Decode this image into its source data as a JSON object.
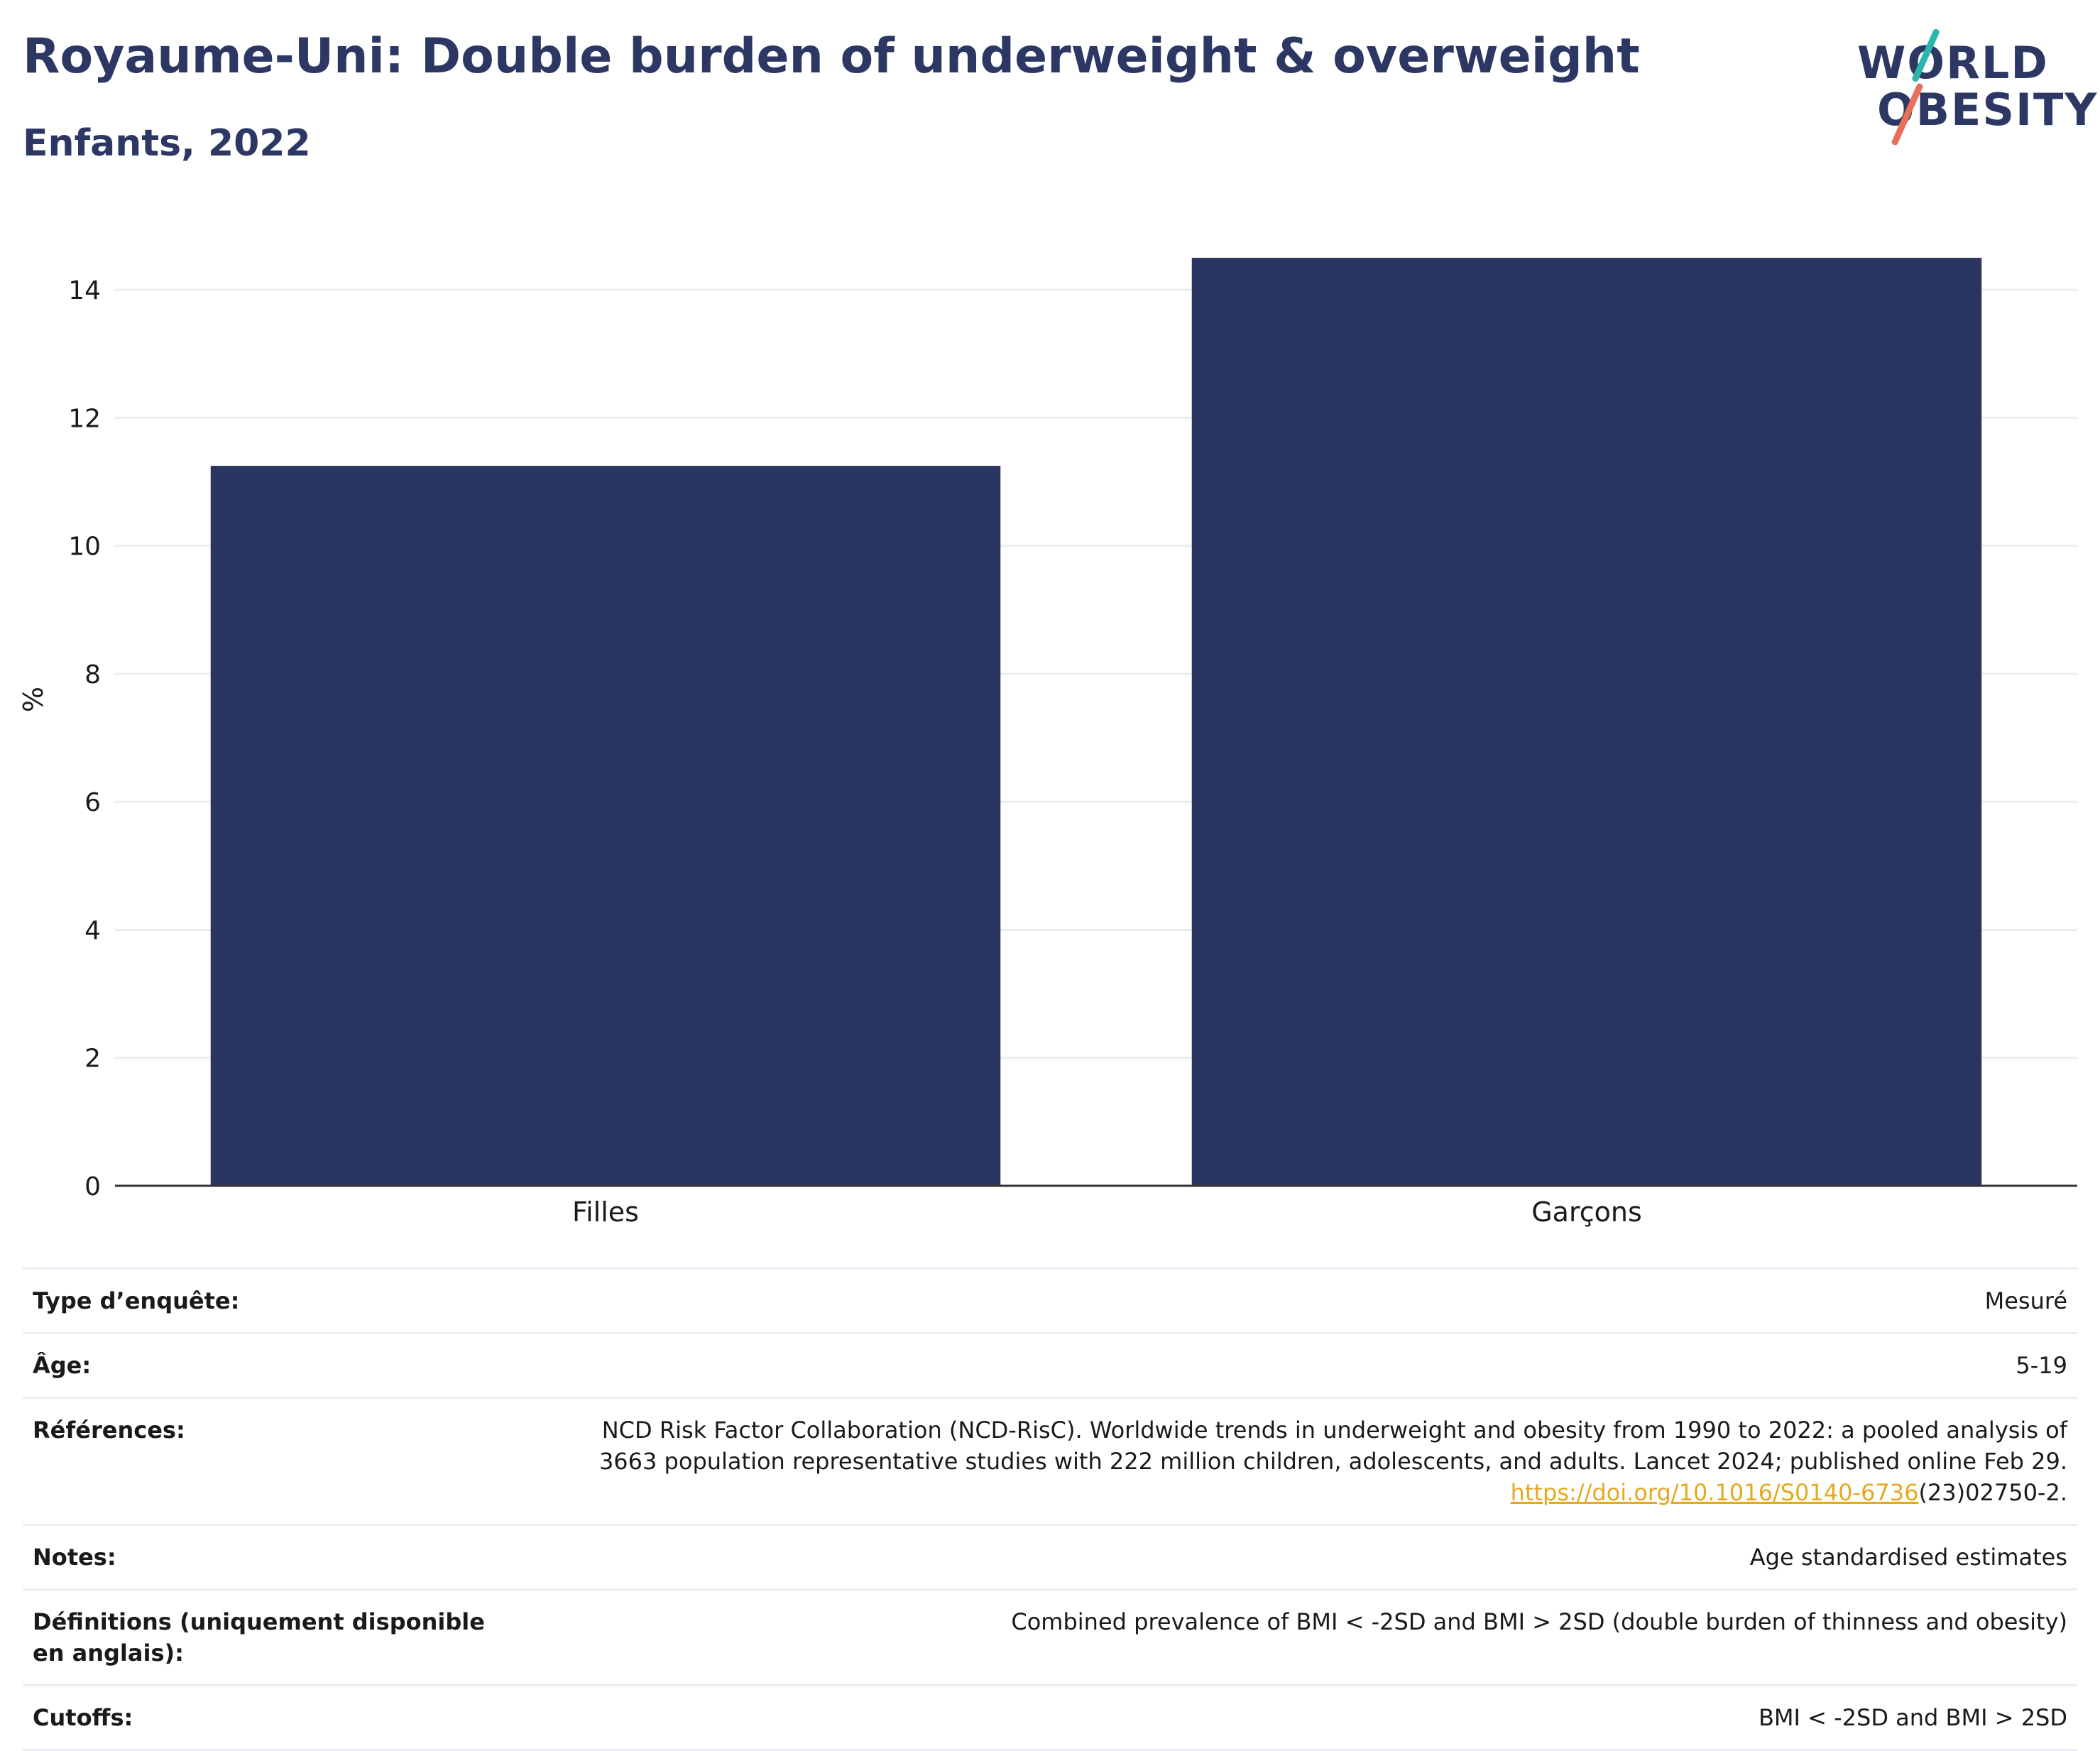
{
  "header": {
    "title": "Royaume-Uni: Double burden of underweight & overweight",
    "subtitle": "Enfants, 2022"
  },
  "logo": {
    "line1": "WORLD",
    "line2": "OBESITY",
    "colors": {
      "text": "#2c3863",
      "slash_top": "#2bb5ad",
      "slash_bottom": "#e8705a"
    }
  },
  "colors": {
    "bar": "#2b3562",
    "grid": "#e9edf4",
    "axis": "#333333",
    "link": "#e6a821"
  },
  "chart_data": {
    "type": "bar",
    "categories": [
      "Filles",
      "Garçons"
    ],
    "values": [
      11.25,
      14.5
    ],
    "ylabel": "%",
    "xlabel": "",
    "ylim": [
      0,
      15.2
    ],
    "yticks": [
      0,
      2,
      4,
      6,
      8,
      10,
      12,
      14
    ],
    "grid": true,
    "legend": false
  },
  "meta": {
    "rows": [
      {
        "label": "Type d’enquête:",
        "value": "Mesuré"
      },
      {
        "label": "Âge:",
        "value": "5-19"
      },
      {
        "label": "Références:",
        "value_lines": [
          "NCD Risk Factor Collaboration (NCD-RisC). Worldwide trends in underweight and obesity from 1990 to 2022: a pooled analysis of",
          "3663 population representative studies with 222 million children, adolescents, and adults. Lancet 2024; published online Feb 29."
        ],
        "link_text": "https://doi.org/10.1016/S0140-6736",
        "link_suffix": "(23)02750-2."
      },
      {
        "label": "Notes:",
        "value": "Age standardised estimates"
      },
      {
        "label": "Définitions (uniquement disponible en anglais):",
        "value": "Combined prevalence of BMI < -2SD and BMI > 2SD (double burden of thinness and obesity)"
      },
      {
        "label": "Cutoffs:",
        "value": "BMI < -2SD and BMI > 2SD"
      }
    ]
  }
}
